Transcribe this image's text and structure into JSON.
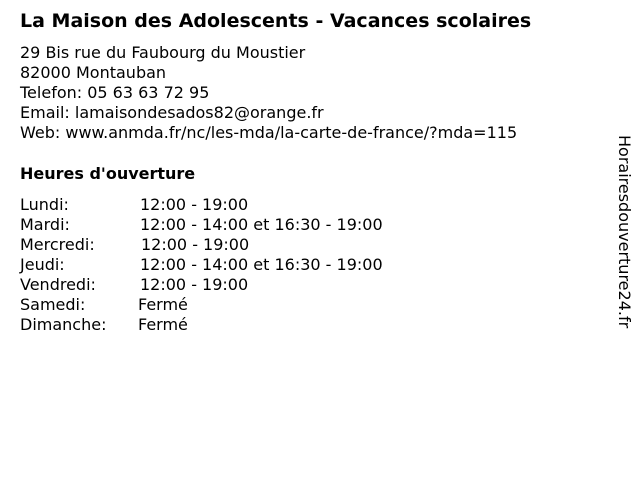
{
  "title": "La Maison des Adolescents - Vacances scolaires",
  "address": {
    "street": "29 Bis rue du Faubourg du Moustier",
    "city": "82000 Montauban",
    "phone": "Telefon: 05 63 63 72 95",
    "email": "Email: lamaisondesados82@orange.fr",
    "web": "Web: www.anmda.fr/nc/les-mda/la-carte-de-france/?mda=115"
  },
  "hours_heading": "Heures d'ouverture",
  "hours": [
    {
      "day": "Lundi:",
      "time": "12:00 - 19:00"
    },
    {
      "day": "Mardi:",
      "time": "12:00 - 14:00 et 16:30 - 19:00"
    },
    {
      "day": "Mercredi:",
      "time": "12:00 - 19:00"
    },
    {
      "day": "Jeudi:",
      "time": "12:00 - 14:00 et 16:30 - 19:00"
    },
    {
      "day": "Vendredi:",
      "time": "12:00 - 19:00"
    },
    {
      "day": "Samedi:",
      "time": "Fermé"
    },
    {
      "day": "Dimanche:",
      "time": "Fermé"
    }
  ],
  "watermark": "Horairesdouverture24.fr"
}
